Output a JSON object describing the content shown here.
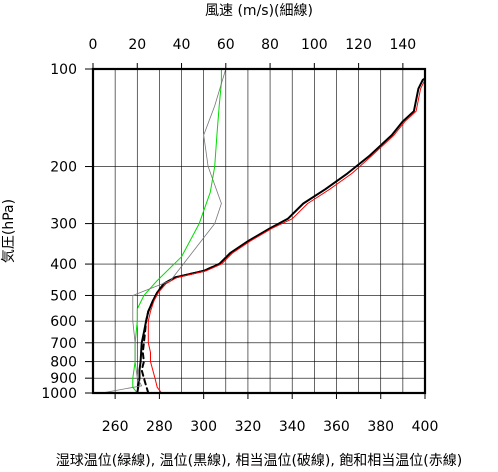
{
  "chart_data": {
    "type": "line",
    "title": "",
    "x_bottom": {
      "label": "湿球温位(緑線), 温位(黒線), 相当温位(破線), 飽和相当温位(赤線)",
      "range": [
        250,
        400
      ],
      "ticks": [
        260,
        280,
        300,
        320,
        340,
        360,
        380,
        400
      ]
    },
    "x_top": {
      "label": "風速 (m/s)(細線)",
      "range": [
        0,
        150
      ],
      "ticks": [
        0,
        20,
        40,
        60,
        80,
        100,
        120,
        140
      ]
    },
    "y": {
      "label": "気圧(hPa)",
      "scale": "log",
      "reversed": true,
      "range": [
        1000,
        100
      ],
      "ticks": [
        100,
        200,
        300,
        400,
        500,
        600,
        700,
        800,
        900,
        1000
      ]
    },
    "grid": true,
    "series": [
      {
        "axis": "bottom",
        "color": "#00dd00",
        "style": "solid",
        "width": 1,
        "points": [
          [
            270,
            1000
          ],
          [
            268,
            960
          ],
          [
            268,
            900
          ],
          [
            269,
            800
          ],
          [
            269,
            700
          ],
          [
            270,
            600
          ],
          [
            270,
            550
          ],
          [
            273,
            500
          ],
          [
            279,
            450
          ],
          [
            290,
            380
          ],
          [
            298,
            300
          ],
          [
            303,
            240
          ],
          [
            305,
            200
          ],
          [
            306,
            160
          ],
          [
            307,
            130
          ],
          [
            308,
            110
          ],
          [
            308,
            100
          ]
        ]
      },
      {
        "axis": "bottom",
        "color": "#000000",
        "style": "solid",
        "width": 2,
        "points": [
          [
            270,
            1000
          ],
          [
            270.5,
            950
          ],
          [
            271,
            900
          ],
          [
            271,
            850
          ],
          [
            271.5,
            800
          ],
          [
            272,
            700
          ],
          [
            273,
            650
          ],
          [
            274,
            600
          ],
          [
            275,
            560
          ],
          [
            277,
            520
          ],
          [
            279,
            490
          ],
          [
            282,
            460
          ],
          [
            287,
            440
          ],
          [
            300,
            420
          ],
          [
            307,
            400
          ],
          [
            312,
            370
          ],
          [
            320,
            340
          ],
          [
            330,
            310
          ],
          [
            338,
            290
          ],
          [
            345,
            260
          ],
          [
            355,
            235
          ],
          [
            365,
            210
          ],
          [
            375,
            185
          ],
          [
            385,
            160
          ],
          [
            390,
            145
          ],
          [
            395,
            135
          ],
          [
            397,
            115
          ],
          [
            399,
            108
          ],
          [
            400,
            107
          ]
        ]
      },
      {
        "axis": "bottom",
        "color": "#000000",
        "style": "dashed",
        "width": 2,
        "points": [
          [
            275,
            1000
          ],
          [
            274,
            950
          ],
          [
            273,
            900
          ],
          [
            272,
            850
          ],
          [
            273,
            800
          ],
          [
            272.5,
            750
          ],
          [
            273,
            700
          ],
          [
            273.5,
            650
          ],
          [
            274,
            600
          ],
          [
            275,
            560
          ],
          [
            277,
            520
          ],
          [
            279,
            490
          ],
          [
            282,
            460
          ],
          [
            287,
            440
          ],
          [
            300,
            420
          ],
          [
            307,
            400
          ]
        ]
      },
      {
        "axis": "bottom",
        "color": "#ff0000",
        "style": "solid",
        "width": 1,
        "points": [
          [
            281,
            1000
          ],
          [
            279,
            960
          ],
          [
            278,
            900
          ],
          [
            277,
            850
          ],
          [
            276,
            800
          ],
          [
            276,
            750
          ],
          [
            275,
            700
          ],
          [
            275,
            650
          ],
          [
            275,
            600
          ],
          [
            276,
            560
          ],
          [
            277.5,
            520
          ],
          [
            279.5,
            490
          ],
          [
            283,
            460
          ],
          [
            288,
            440
          ],
          [
            301,
            420
          ],
          [
            308,
            400
          ],
          [
            313,
            370
          ],
          [
            321,
            340
          ],
          [
            331,
            310
          ],
          [
            340,
            290
          ],
          [
            347,
            260
          ],
          [
            357,
            235
          ],
          [
            367,
            210
          ],
          [
            376,
            185
          ],
          [
            386,
            160
          ],
          [
            391,
            145
          ],
          [
            396,
            135
          ],
          [
            398,
            115
          ],
          [
            400,
            108
          ]
        ]
      },
      {
        "axis": "top",
        "color": "#777777",
        "style": "solid",
        "width": 0.8,
        "points": [
          [
            4,
            1000
          ],
          [
            22,
            950
          ],
          [
            20,
            900
          ],
          [
            19,
            800
          ],
          [
            19,
            700
          ],
          [
            18,
            600
          ],
          [
            18,
            500
          ],
          [
            35,
            450
          ],
          [
            55,
            300
          ],
          [
            58,
            260
          ],
          [
            52,
            200
          ],
          [
            50,
            160
          ],
          [
            55,
            130
          ],
          [
            60,
            100
          ]
        ]
      }
    ]
  }
}
